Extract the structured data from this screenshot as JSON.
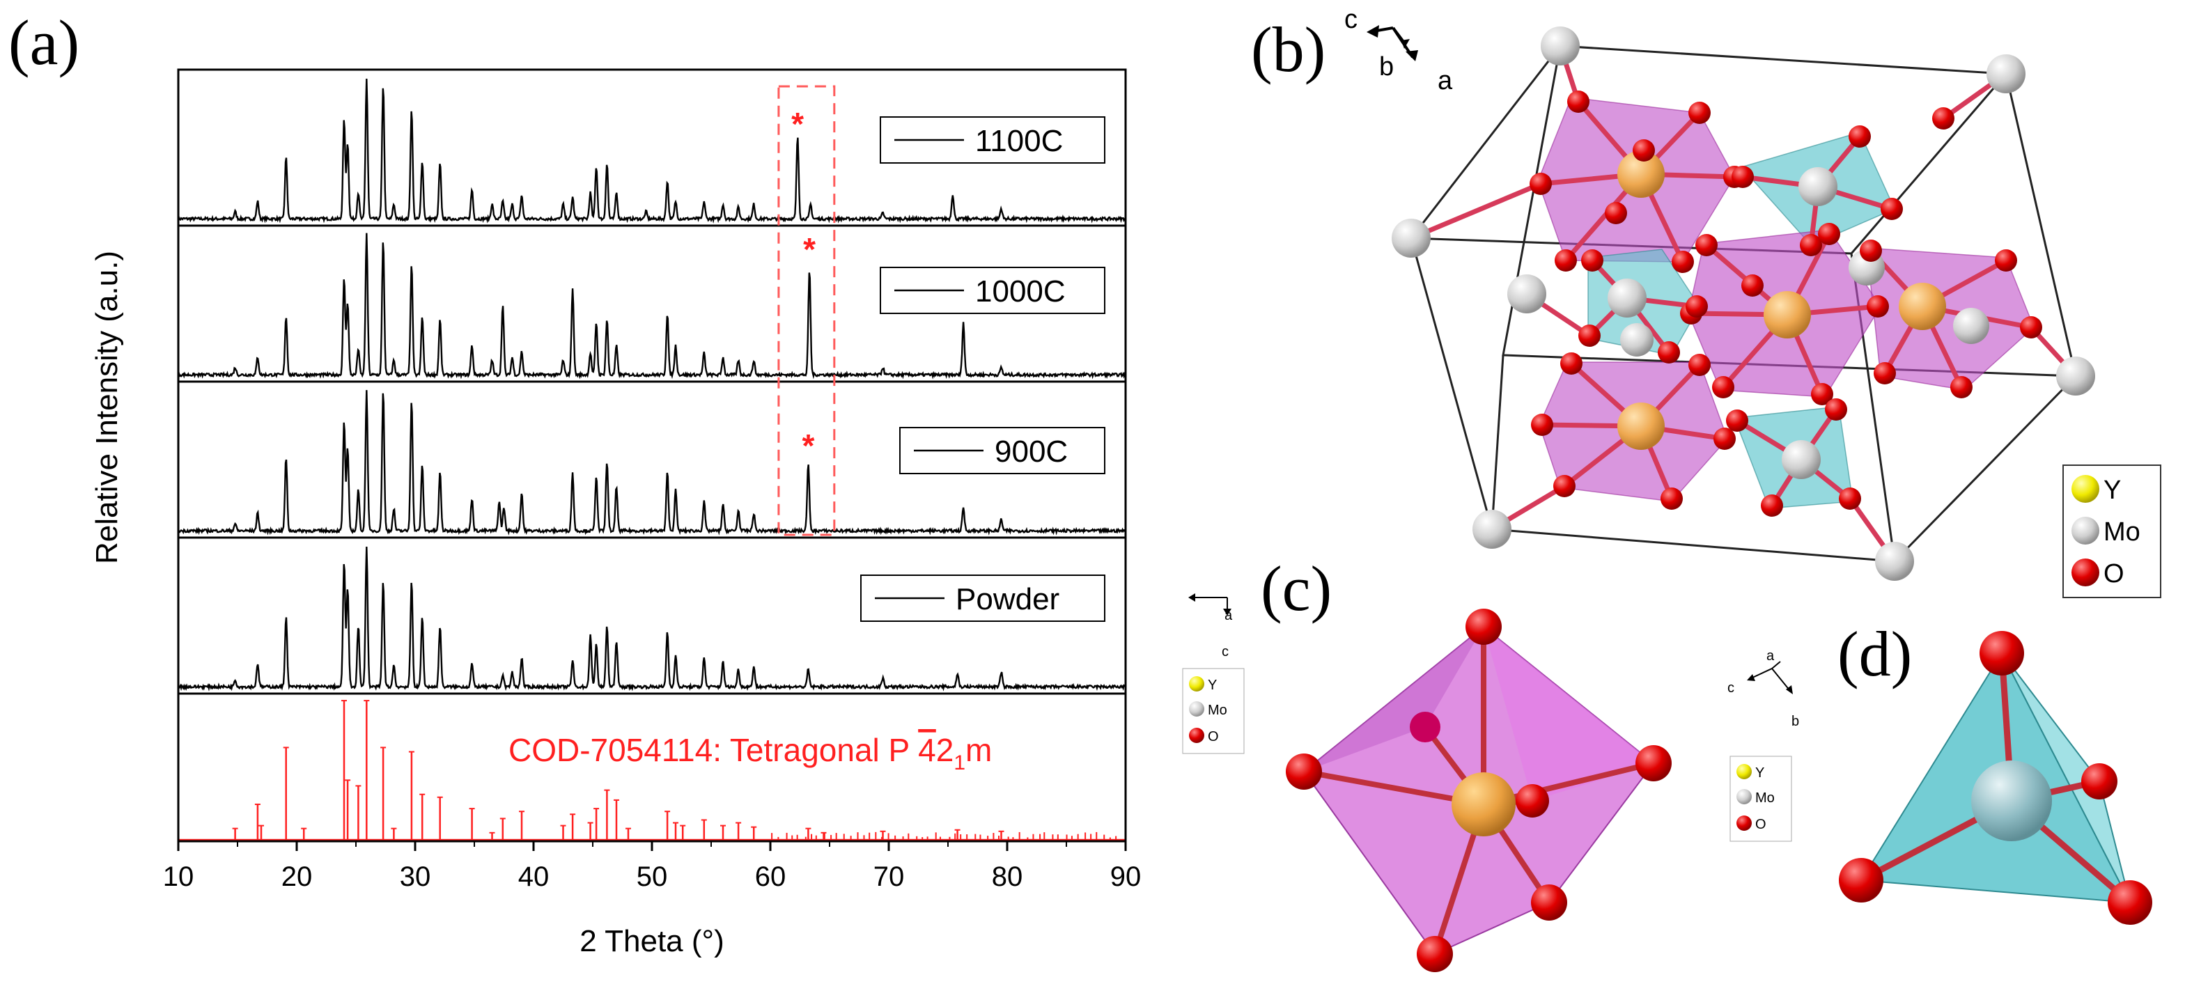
{
  "panels": {
    "a": "(a)",
    "b": "(b)",
    "c": "(c)",
    "d": "(d)"
  },
  "chart_data": {
    "type": "line",
    "title": "",
    "xlabel": "2 Theta (°)",
    "ylabel": "Relative Intensity (a.u.)",
    "xlim": [
      10,
      90
    ],
    "xticks": [
      "10",
      "20",
      "30",
      "40",
      "50",
      "60",
      "70",
      "80",
      "90"
    ],
    "series": [
      {
        "name": "1100C",
        "peaks": [
          [
            14.8,
            0.05
          ],
          [
            16.7,
            0.12
          ],
          [
            19.1,
            0.42
          ],
          [
            24.0,
            0.68
          ],
          [
            24.3,
            0.52
          ],
          [
            25.2,
            0.18
          ],
          [
            25.9,
            0.96
          ],
          [
            27.3,
            0.92
          ],
          [
            28.2,
            0.1
          ],
          [
            29.7,
            0.75
          ],
          [
            30.6,
            0.4
          ],
          [
            32.1,
            0.38
          ],
          [
            34.8,
            0.2
          ],
          [
            36.5,
            0.1
          ],
          [
            37.4,
            0.12
          ],
          [
            38.2,
            0.1
          ],
          [
            39.0,
            0.16
          ],
          [
            42.5,
            0.1
          ],
          [
            43.3,
            0.15
          ],
          [
            44.8,
            0.18
          ],
          [
            45.3,
            0.36
          ],
          [
            46.2,
            0.38
          ],
          [
            47.0,
            0.18
          ],
          [
            49.5,
            0.05
          ],
          [
            51.3,
            0.26
          ],
          [
            52.0,
            0.12
          ],
          [
            54.4,
            0.12
          ],
          [
            56.0,
            0.1
          ],
          [
            57.3,
            0.08
          ],
          [
            58.6,
            0.1
          ],
          [
            62.3,
            0.56
          ],
          [
            63.4,
            0.1
          ],
          [
            69.5,
            0.04
          ],
          [
            75.4,
            0.17
          ],
          [
            79.5,
            0.07
          ]
        ]
      },
      {
        "name": "1000C",
        "peaks": [
          [
            14.8,
            0.05
          ],
          [
            16.7,
            0.12
          ],
          [
            19.1,
            0.4
          ],
          [
            24.0,
            0.66
          ],
          [
            24.3,
            0.5
          ],
          [
            25.2,
            0.18
          ],
          [
            25.9,
            0.96
          ],
          [
            27.3,
            0.92
          ],
          [
            28.2,
            0.1
          ],
          [
            29.7,
            0.75
          ],
          [
            30.6,
            0.4
          ],
          [
            32.1,
            0.38
          ],
          [
            34.8,
            0.2
          ],
          [
            36.5,
            0.1
          ],
          [
            37.4,
            0.48
          ],
          [
            38.2,
            0.12
          ],
          [
            39.0,
            0.16
          ],
          [
            42.5,
            0.1
          ],
          [
            43.3,
            0.6
          ],
          [
            44.8,
            0.15
          ],
          [
            45.3,
            0.36
          ],
          [
            46.2,
            0.38
          ],
          [
            47.0,
            0.2
          ],
          [
            51.3,
            0.42
          ],
          [
            52.0,
            0.2
          ],
          [
            54.4,
            0.15
          ],
          [
            56.0,
            0.12
          ],
          [
            57.3,
            0.1
          ],
          [
            58.6,
            0.1
          ],
          [
            63.3,
            0.72
          ],
          [
            69.5,
            0.05
          ],
          [
            76.3,
            0.36
          ],
          [
            79.5,
            0.05
          ]
        ]
      },
      {
        "name": "900C",
        "peaks": [
          [
            14.8,
            0.05
          ],
          [
            16.7,
            0.12
          ],
          [
            19.1,
            0.5
          ],
          [
            24.0,
            0.75
          ],
          [
            24.3,
            0.56
          ],
          [
            25.2,
            0.28
          ],
          [
            25.9,
            0.96
          ],
          [
            27.3,
            0.96
          ],
          [
            28.2,
            0.15
          ],
          [
            29.7,
            0.9
          ],
          [
            30.6,
            0.45
          ],
          [
            32.1,
            0.4
          ],
          [
            34.8,
            0.22
          ],
          [
            37.1,
            0.2
          ],
          [
            37.5,
            0.16
          ],
          [
            39.0,
            0.26
          ],
          [
            43.3,
            0.4
          ],
          [
            45.3,
            0.38
          ],
          [
            46.2,
            0.48
          ],
          [
            47.0,
            0.3
          ],
          [
            51.3,
            0.4
          ],
          [
            52.0,
            0.28
          ],
          [
            54.4,
            0.2
          ],
          [
            56.0,
            0.18
          ],
          [
            57.3,
            0.14
          ],
          [
            58.6,
            0.12
          ],
          [
            63.2,
            0.46
          ],
          [
            76.3,
            0.16
          ],
          [
            79.5,
            0.08
          ]
        ]
      },
      {
        "name": "Powder",
        "peaks": [
          [
            14.8,
            0.05
          ],
          [
            16.7,
            0.16
          ],
          [
            19.1,
            0.48
          ],
          [
            24.0,
            0.86
          ],
          [
            24.3,
            0.68
          ],
          [
            25.2,
            0.42
          ],
          [
            25.9,
            0.96
          ],
          [
            27.3,
            0.72
          ],
          [
            28.2,
            0.15
          ],
          [
            29.7,
            0.72
          ],
          [
            30.6,
            0.48
          ],
          [
            32.1,
            0.42
          ],
          [
            34.8,
            0.16
          ],
          [
            37.4,
            0.08
          ],
          [
            38.2,
            0.1
          ],
          [
            39.0,
            0.2
          ],
          [
            43.3,
            0.18
          ],
          [
            44.8,
            0.36
          ],
          [
            45.3,
            0.3
          ],
          [
            46.2,
            0.42
          ],
          [
            47.0,
            0.32
          ],
          [
            51.3,
            0.38
          ],
          [
            52.0,
            0.22
          ],
          [
            54.4,
            0.2
          ],
          [
            56.0,
            0.17
          ],
          [
            57.3,
            0.12
          ],
          [
            58.6,
            0.14
          ],
          [
            63.2,
            0.12
          ],
          [
            69.5,
            0.06
          ],
          [
            75.8,
            0.09
          ],
          [
            79.5,
            0.1
          ]
        ]
      }
    ],
    "reference": {
      "name": "COD-7054114: Tetragonal P 421m",
      "label_parts": [
        "COD-7054114: Tetragonal P ",
        "4",
        "2",
        "1",
        "m"
      ],
      "sticks": [
        [
          14.8,
          0.08
        ],
        [
          16.7,
          0.25
        ],
        [
          17.0,
          0.1
        ],
        [
          19.1,
          0.65
        ],
        [
          20.6,
          0.08
        ],
        [
          24.0,
          0.98
        ],
        [
          24.3,
          0.42
        ],
        [
          25.2,
          0.38
        ],
        [
          25.9,
          0.98
        ],
        [
          27.3,
          0.65
        ],
        [
          28.2,
          0.08
        ],
        [
          29.7,
          0.62
        ],
        [
          30.6,
          0.32
        ],
        [
          32.1,
          0.3
        ],
        [
          34.8,
          0.22
        ],
        [
          36.5,
          0.05
        ],
        [
          37.4,
          0.15
        ],
        [
          39.0,
          0.2
        ],
        [
          42.5,
          0.1
        ],
        [
          43.3,
          0.18
        ],
        [
          44.8,
          0.12
        ],
        [
          45.3,
          0.22
        ],
        [
          46.2,
          0.35
        ],
        [
          47.0,
          0.28
        ],
        [
          48.0,
          0.08
        ],
        [
          51.3,
          0.2
        ],
        [
          52.0,
          0.12
        ],
        [
          52.6,
          0.1
        ],
        [
          54.4,
          0.14
        ],
        [
          56.0,
          0.1
        ],
        [
          57.3,
          0.12
        ],
        [
          58.6,
          0.09
        ],
        [
          63.2,
          0.08
        ],
        [
          64.5,
          0.05
        ],
        [
          69.5,
          0.06
        ],
        [
          75.8,
          0.07
        ],
        [
          79.5,
          0.06
        ]
      ],
      "minor_sticks_from": 60,
      "minor_sticks_to": 90
    },
    "highlight_box": {
      "x_range": [
        60.7,
        65.4
      ],
      "style": "dashed",
      "color": "#ff5a5a"
    },
    "star_marker": "*",
    "trace_color": "#000000",
    "reference_color": "#ff2020"
  },
  "structure": {
    "axes_b": {
      "c": "c",
      "b": "b",
      "a": "a"
    },
    "axes_c": {
      "a": "a",
      "c": "c"
    },
    "axes_d": {
      "a": "a",
      "c": "c",
      "b": "b"
    },
    "legend": [
      {
        "symbol": "Y",
        "color": "#f5f000"
      },
      {
        "symbol": "Mo",
        "color": "#d9d9d9"
      },
      {
        "symbol": "O",
        "color": "#ee0000"
      }
    ],
    "colors": {
      "octahedron": "#c050c8",
      "tetrahedron": "#5cc4cc",
      "y_atom": "#eea850",
      "mo_atom": "#cfcfcf",
      "o_atom": "#e20000",
      "bond": "#d63a5a"
    }
  }
}
